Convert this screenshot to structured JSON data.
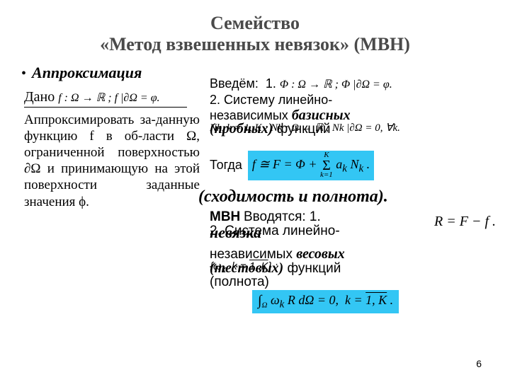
{
  "title_line1": "Семейство",
  "title_line2": "«Метод взвешенных невязок» (МВН)",
  "bullet": "Аппроксимация",
  "given_label": "Дано",
  "given_formula": "f : Ω → ℝ ;  f |∂Ω = φ.",
  "task_text": "Аппроксимировать за-данную функцию f в об-ласти Ω, ограниченной поверхностью ∂Ω и принимающую на этой поверхности заданные значения ϕ.",
  "intro": {
    "label": "Введём:",
    "phi_formula": "Φ : Ω → ℝ ;  Φ |∂Ω = φ."
  },
  "basis": {
    "line2a": "2. Систему линейно-",
    "line2b": "независимых ",
    "word_basis": "базисных",
    "probe_paren": "(пробных)",
    "probe_tail": " функций",
    "nk_formula": "Nk,  k = 1, K ;  Nk : Ω → ℝ ;  Nk |∂Ω = 0, ∀k."
  },
  "then_label": "Тогда",
  "then_formula": "f ≅ F = Φ + Σk=1..K ak Nk .",
  "convergence": "(сходимость и полнота).",
  "mvn": {
    "word": "МВН",
    "vvod": "Вводятся: 1.",
    "nev": "невязка",
    "sys2": "2. Система линейно-",
    "r_formula": "R = F − f ."
  },
  "weight": {
    "l1a": "независимых ",
    "l1_word": "весовых",
    "l2_paren": "(тестовых)",
    "l2_tail": " функций",
    "l2_omega": "ωk,  k = 1, K ;",
    "l3": "(полнота)"
  },
  "bottom_formula": "∫Ω ωk R dΩ = 0,  k = 1, K .",
  "page_number": "6",
  "highlight_color": "#33c6f4"
}
